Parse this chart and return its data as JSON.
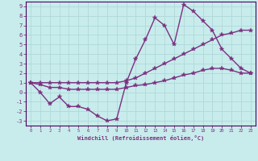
{
  "xlabel": "Windchill (Refroidissement éolien,°C)",
  "x": [
    0,
    1,
    2,
    3,
    4,
    5,
    6,
    7,
    8,
    9,
    10,
    11,
    12,
    13,
    14,
    15,
    16,
    17,
    18,
    19,
    20,
    21,
    22,
    23
  ],
  "line1": [
    1.0,
    0.0,
    -1.2,
    -0.5,
    -1.5,
    -1.5,
    -1.8,
    -2.5,
    -3.0,
    -2.8,
    1.0,
    3.5,
    5.5,
    7.8,
    7.0,
    5.0,
    9.2,
    8.5,
    7.5,
    6.5,
    4.5,
    3.5,
    2.5,
    2.0
  ],
  "line2": [
    1.0,
    1.0,
    1.0,
    1.0,
    1.0,
    1.0,
    1.0,
    1.0,
    1.0,
    1.0,
    1.2,
    1.5,
    2.0,
    2.5,
    3.0,
    3.5,
    4.0,
    4.5,
    5.0,
    5.5,
    6.0,
    6.2,
    6.5,
    6.5
  ],
  "line3": [
    1.0,
    0.8,
    0.5,
    0.5,
    0.3,
    0.3,
    0.3,
    0.3,
    0.3,
    0.3,
    0.5,
    0.7,
    0.8,
    1.0,
    1.2,
    1.5,
    1.8,
    2.0,
    2.3,
    2.5,
    2.5,
    2.3,
    2.0,
    2.0
  ],
  "line_color": "#7b3080",
  "bg_color": "#c8ecec",
  "grid_color": "#b0d8d8",
  "axis_color": "#7b3080",
  "spine_color": "#4a0060",
  "xlim": [
    -0.5,
    23.5
  ],
  "ylim": [
    -3.5,
    9.5
  ],
  "yticks": [
    -3,
    -2,
    -1,
    0,
    1,
    2,
    3,
    4,
    5,
    6,
    7,
    8,
    9
  ],
  "xticks": [
    0,
    1,
    2,
    3,
    4,
    5,
    6,
    7,
    8,
    9,
    10,
    11,
    12,
    13,
    14,
    15,
    16,
    17,
    18,
    19,
    20,
    21,
    22,
    23
  ],
  "marker": "*",
  "marker_size": 4,
  "line_width": 1.0
}
